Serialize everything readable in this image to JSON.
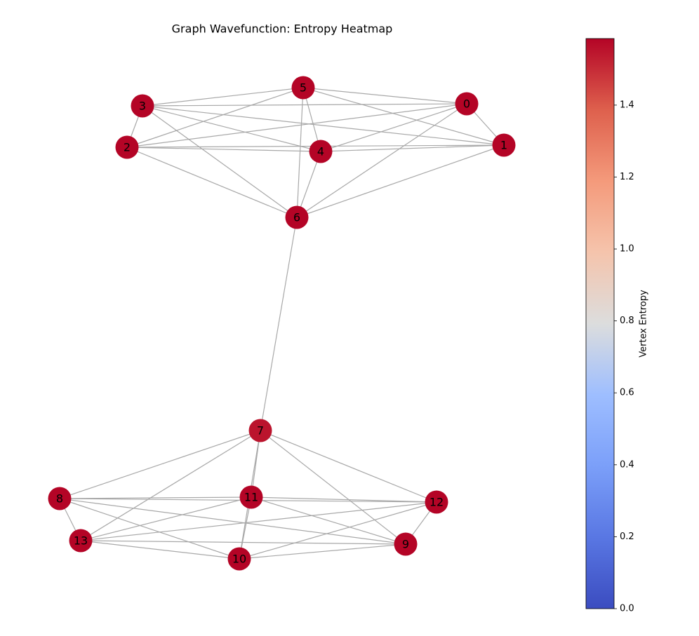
{
  "chart_data": {
    "type": "network",
    "title": "Graph Wavefunction: Entropy Heatmap",
    "nodes": [
      {
        "label": "0",
        "value": 1.585
      },
      {
        "label": "1",
        "value": 1.585
      },
      {
        "label": "2",
        "value": 1.585
      },
      {
        "label": "3",
        "value": 1.585
      },
      {
        "label": "4",
        "value": 1.585
      },
      {
        "label": "5",
        "value": 1.585
      },
      {
        "label": "6",
        "value": 1.585
      },
      {
        "label": "7",
        "value": 1.55
      },
      {
        "label": "8",
        "value": 1.585
      },
      {
        "label": "9",
        "value": 1.585
      },
      {
        "label": "10",
        "value": 1.585
      },
      {
        "label": "11",
        "value": 1.585
      },
      {
        "label": "12",
        "value": 1.585
      },
      {
        "label": "13",
        "value": 1.585
      }
    ],
    "edges": [
      [
        0,
        1
      ],
      [
        0,
        2
      ],
      [
        0,
        3
      ],
      [
        0,
        4
      ],
      [
        0,
        5
      ],
      [
        0,
        6
      ],
      [
        1,
        2
      ],
      [
        1,
        3
      ],
      [
        1,
        4
      ],
      [
        1,
        5
      ],
      [
        1,
        6
      ],
      [
        2,
        3
      ],
      [
        2,
        4
      ],
      [
        2,
        5
      ],
      [
        2,
        6
      ],
      [
        3,
        4
      ],
      [
        3,
        5
      ],
      [
        3,
        6
      ],
      [
        4,
        5
      ],
      [
        4,
        6
      ],
      [
        5,
        6
      ],
      [
        6,
        7
      ],
      [
        7,
        8
      ],
      [
        7,
        9
      ],
      [
        7,
        10
      ],
      [
        7,
        11
      ],
      [
        7,
        12
      ],
      [
        7,
        13
      ],
      [
        8,
        9
      ],
      [
        8,
        10
      ],
      [
        8,
        11
      ],
      [
        8,
        12
      ],
      [
        8,
        13
      ],
      [
        9,
        10
      ],
      [
        9,
        11
      ],
      [
        9,
        12
      ],
      [
        9,
        13
      ],
      [
        10,
        11
      ],
      [
        10,
        12
      ],
      [
        10,
        13
      ],
      [
        11,
        12
      ],
      [
        11,
        13
      ],
      [
        12,
        13
      ]
    ],
    "colorbar": {
      "label": "Vertex Entropy",
      "colormap": "coolwarm",
      "clim": [
        0,
        1.585
      ],
      "ticks": [
        {
          "value": 0,
          "label": "0.0"
        },
        0.2,
        0.4,
        0.6,
        0.8,
        {
          "value": 1,
          "label": "1.0"
        },
        1.2,
        1.4
      ]
    }
  }
}
